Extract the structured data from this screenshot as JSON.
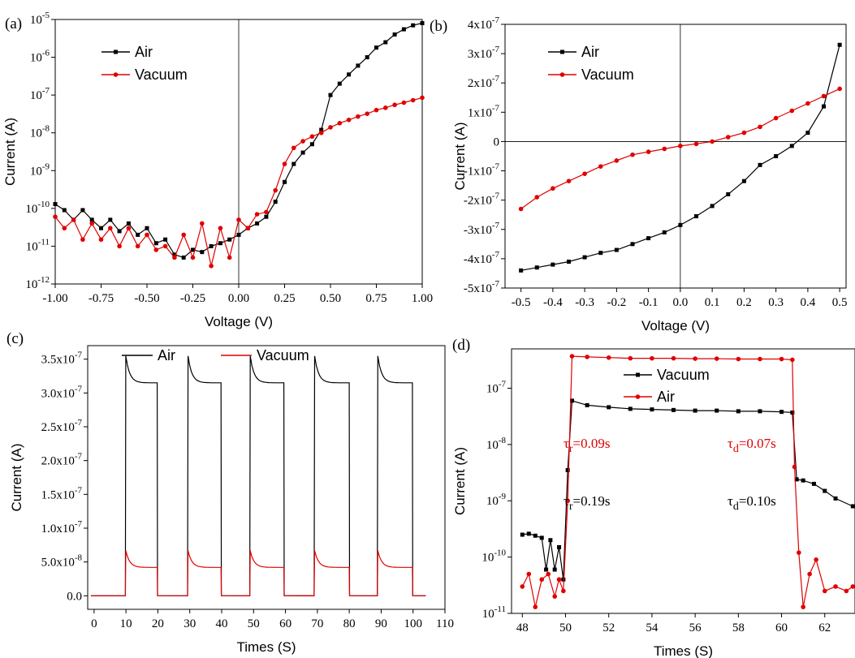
{
  "colors": {
    "air": "#000000",
    "vacuum": "#e00000"
  },
  "chart_data": [
    {
      "panel": "(a)",
      "type": "line",
      "xlabel": "Voltage (V)",
      "ylabel": "Current (A)",
      "xlim": [
        -1.0,
        1.0
      ],
      "ylim": [
        1e-12,
        1e-05
      ],
      "yscale": "log",
      "xticks": [
        "-1.00",
        "-0.75",
        "-0.50",
        "-0.25",
        "0.00",
        "0.25",
        "0.50",
        "0.75",
        "1.00"
      ],
      "yticks": [
        {
          "base": "10",
          "exp": "-12"
        },
        {
          "base": "10",
          "exp": "-11"
        },
        {
          "base": "10",
          "exp": "-10"
        },
        {
          "base": "10",
          "exp": "-9"
        },
        {
          "base": "10",
          "exp": "-8"
        },
        {
          "base": "10",
          "exp": "-7"
        },
        {
          "base": "10",
          "exp": "-6"
        },
        {
          "base": "10",
          "exp": "-5"
        }
      ],
      "legend_position": "top-left",
      "series": [
        {
          "name": "Air",
          "color": "#000000",
          "marker": "square",
          "x": [
            -1.0,
            -0.95,
            -0.9,
            -0.85,
            -0.8,
            -0.75,
            -0.7,
            -0.65,
            -0.6,
            -0.55,
            -0.5,
            -0.45,
            -0.4,
            -0.35,
            -0.3,
            -0.25,
            -0.2,
            -0.15,
            -0.1,
            -0.05,
            0.0,
            0.05,
            0.1,
            0.15,
            0.2,
            0.25,
            0.3,
            0.35,
            0.4,
            0.45,
            0.5,
            0.55,
            0.6,
            0.65,
            0.7,
            0.75,
            0.8,
            0.85,
            0.9,
            0.95,
            1.0
          ],
          "y": [
            1.3e-10,
            9e-11,
            5e-11,
            9e-11,
            5e-11,
            3e-11,
            5e-11,
            2.5e-11,
            4e-11,
            2e-11,
            3e-11,
            1.2e-11,
            1.5e-11,
            6e-12,
            5e-12,
            8e-12,
            7e-12,
            1e-11,
            1.2e-11,
            1.5e-11,
            2e-11,
            3e-11,
            4e-11,
            6e-11,
            1.5e-10,
            5e-10,
            1.5e-09,
            3e-09,
            5e-09,
            1.2e-08,
            1e-07,
            2e-07,
            3.5e-07,
            6e-07,
            1e-06,
            1.8e-06,
            2.5e-06,
            4e-06,
            5.5e-06,
            7e-06,
            8e-06
          ]
        },
        {
          "name": "Vacuum",
          "color": "#e00000",
          "marker": "circle",
          "x": [
            -1.0,
            -0.95,
            -0.9,
            -0.85,
            -0.8,
            -0.75,
            -0.7,
            -0.65,
            -0.6,
            -0.55,
            -0.5,
            -0.45,
            -0.4,
            -0.35,
            -0.3,
            -0.25,
            -0.2,
            -0.15,
            -0.1,
            -0.05,
            0.0,
            0.05,
            0.1,
            0.15,
            0.2,
            0.25,
            0.3,
            0.35,
            0.4,
            0.45,
            0.5,
            0.55,
            0.6,
            0.65,
            0.7,
            0.75,
            0.8,
            0.85,
            0.9,
            0.95,
            1.0
          ],
          "y": [
            6e-11,
            3e-11,
            5e-11,
            1.5e-11,
            4e-11,
            1.5e-11,
            3e-11,
            1e-11,
            3e-11,
            1e-11,
            2e-11,
            8e-12,
            1e-11,
            5e-12,
            2e-11,
            5e-12,
            4e-11,
            3e-12,
            3e-11,
            5e-12,
            5e-11,
            3e-11,
            7e-11,
            8e-11,
            3e-10,
            1.5e-09,
            4e-09,
            6e-09,
            8e-09,
            1e-08,
            1.4e-08,
            1.8e-08,
            2.2e-08,
            2.7e-08,
            3.2e-08,
            4e-08,
            4.6e-08,
            5.5e-08,
            6.3e-08,
            7.3e-08,
            8.5e-08
          ]
        }
      ]
    },
    {
      "panel": "(b)",
      "type": "line",
      "xlabel": "Voltage (V)",
      "ylabel": "Current (A)",
      "xlim": [
        -0.55,
        0.52
      ],
      "ylim": [
        -5e-07,
        4e-07
      ],
      "xticks": [
        "-0.5",
        "-0.4",
        "-0.3",
        "-0.2",
        "-0.1",
        "0.0",
        "0.1",
        "0.2",
        "0.3",
        "0.4",
        "0.5"
      ],
      "yticks": [
        {
          "base": "-5x10",
          "exp": "-7"
        },
        {
          "base": "-4x10",
          "exp": "-7"
        },
        {
          "base": "-3x10",
          "exp": "-7"
        },
        {
          "base": "-2x10",
          "exp": "-7"
        },
        {
          "base": "-1x10",
          "exp": "-7"
        },
        {
          "base": "0",
          "exp": ""
        },
        {
          "base": "1x10",
          "exp": "-7"
        },
        {
          "base": "2x10",
          "exp": "-7"
        },
        {
          "base": "3x10",
          "exp": "-7"
        },
        {
          "base": "4x10",
          "exp": "-7"
        }
      ],
      "legend_position": "top-left",
      "series": [
        {
          "name": "Air",
          "color": "#000000",
          "marker": "square",
          "x": [
            -0.5,
            -0.45,
            -0.4,
            -0.35,
            -0.3,
            -0.25,
            -0.2,
            -0.15,
            -0.1,
            -0.05,
            0.0,
            0.05,
            0.1,
            0.15,
            0.2,
            0.25,
            0.3,
            0.35,
            0.4,
            0.45,
            0.5
          ],
          "y": [
            -4.4e-07,
            -4.3e-07,
            -4.2e-07,
            -4.1e-07,
            -3.95e-07,
            -3.8e-07,
            -3.7e-07,
            -3.5e-07,
            -3.3e-07,
            -3.1e-07,
            -2.85e-07,
            -2.55e-07,
            -2.2e-07,
            -1.8e-07,
            -1.35e-07,
            -8e-08,
            -5e-08,
            -1.5e-08,
            3e-08,
            1.2e-07,
            3.3e-07
          ]
        },
        {
          "name": "Vacuum",
          "color": "#e00000",
          "marker": "circle",
          "x": [
            -0.5,
            -0.45,
            -0.4,
            -0.35,
            -0.3,
            -0.25,
            -0.2,
            -0.15,
            -0.1,
            -0.05,
            0.0,
            0.05,
            0.1,
            0.15,
            0.2,
            0.25,
            0.3,
            0.35,
            0.4,
            0.45,
            0.5
          ],
          "y": [
            -2.3e-07,
            -1.9e-07,
            -1.6e-07,
            -1.35e-07,
            -1.1e-07,
            -8.5e-08,
            -6.5e-08,
            -4.5e-08,
            -3.5e-08,
            -2.5e-08,
            -1.5e-08,
            -8e-09,
            0,
            1.5e-08,
            3e-08,
            5e-08,
            8e-08,
            1.05e-07,
            1.3e-07,
            1.55e-07,
            1.8e-07
          ]
        }
      ]
    },
    {
      "panel": "(c)",
      "type": "line",
      "xlabel": "Times (S)",
      "ylabel": "Current (A)",
      "xlim": [
        -2,
        110
      ],
      "ylim": [
        -2e-08,
        3.7e-07
      ],
      "xticks": [
        "0",
        "10",
        "20",
        "30",
        "40",
        "50",
        "60",
        "70",
        "80",
        "90",
        "100",
        "110"
      ],
      "yticks": [
        {
          "base": "0.0",
          "exp": ""
        },
        {
          "base": "5.0x10",
          "exp": "-8"
        },
        {
          "base": "1.0x10",
          "exp": "-7"
        },
        {
          "base": "1.5x10",
          "exp": "-7"
        },
        {
          "base": "2.0x10",
          "exp": "-7"
        },
        {
          "base": "2.5x10",
          "exp": "-7"
        },
        {
          "base": "3.0x10",
          "exp": "-7"
        },
        {
          "base": "3.5x10",
          "exp": "-7"
        }
      ],
      "legend_position": "top",
      "periods": [
        [
          9.8,
          19.8
        ],
        [
          29.3,
          39.8
        ],
        [
          48.8,
          59.5
        ],
        [
          69.0,
          80.0
        ],
        [
          88.8,
          99.8
        ]
      ],
      "series": [
        {
          "name": "Air",
          "color": "#000000",
          "peak": 3.6e-07,
          "plateau": 3.15e-07
        },
        {
          "name": "Vacuum",
          "color": "#e00000",
          "peak": 7e-08,
          "plateau": 4.2e-08
        }
      ]
    },
    {
      "panel": "(d)",
      "type": "scatter",
      "xlabel": "Times (S)",
      "ylabel": "Current (A)",
      "xlim": [
        47.5,
        63.4
      ],
      "ylim": [
        1e-11,
        5e-07
      ],
      "yscale": "log",
      "xticks": [
        "48",
        "50",
        "52",
        "54",
        "56",
        "58",
        "60",
        "62"
      ],
      "yticks": [
        {
          "base": "10",
          "exp": "-11"
        },
        {
          "base": "10",
          "exp": "-10"
        },
        {
          "base": "10",
          "exp": "-9"
        },
        {
          "base": "10",
          "exp": "-8"
        },
        {
          "base": "10",
          "exp": "-7"
        }
      ],
      "legend_position": "top-center",
      "series": [
        {
          "name": "Vacuum",
          "color": "#000000",
          "marker": "square",
          "x": [
            48.0,
            48.3,
            48.6,
            48.9,
            49.1,
            49.3,
            49.5,
            49.7,
            49.9,
            50.1,
            50.3,
            51,
            52,
            53,
            54,
            55,
            56,
            57,
            58,
            59,
            60,
            60.5,
            60.7,
            61.0,
            61.5,
            62.0,
            62.5,
            63.3
          ],
          "y": [
            2.5e-10,
            2.6e-10,
            2.4e-10,
            2.2e-10,
            6e-11,
            2e-10,
            6e-11,
            1.5e-10,
            4e-11,
            3.5e-09,
            6e-08,
            5e-08,
            4.6e-08,
            4.3e-08,
            4.2e-08,
            4.1e-08,
            4e-08,
            4e-08,
            3.9e-08,
            3.9e-08,
            3.8e-08,
            3.7e-08,
            2.4e-09,
            2.3e-09,
            2e-09,
            1.5e-09,
            1.1e-09,
            8e-10
          ]
        },
        {
          "name": "Air",
          "color": "#e00000",
          "marker": "circle",
          "x": [
            48.0,
            48.3,
            48.6,
            48.9,
            49.2,
            49.5,
            49.7,
            49.9,
            50.1,
            50.3,
            51,
            52,
            53,
            54,
            55,
            56,
            57,
            58,
            59,
            60,
            60.5,
            60.6,
            60.8,
            61.0,
            61.3,
            61.6,
            62.0,
            62.5,
            63.0,
            63.3
          ],
          "y": [
            3e-11,
            5e-11,
            1.3e-11,
            4e-11,
            5e-11,
            2e-11,
            4e-11,
            2.5e-11,
            1e-09,
            3.7e-07,
            3.6e-07,
            3.5e-07,
            3.4e-07,
            3.4e-07,
            3.4e-07,
            3.35e-07,
            3.35e-07,
            3.3e-07,
            3.3e-07,
            3.3e-07,
            3.2e-07,
            4e-09,
            1.2e-10,
            1.3e-11,
            5e-11,
            9e-11,
            2.5e-11,
            3e-11,
            2.5e-11,
            3e-11
          ]
        }
      ],
      "annotations": [
        {
          "sym": "τ",
          "sub": "r",
          "text": "=0.09s",
          "color": "#e00000"
        },
        {
          "sym": "τ",
          "sub": "d",
          "text": "=0.07s",
          "color": "#e00000"
        },
        {
          "sym": "τ",
          "sub": "r",
          "text": "=0.19s",
          "color": "#000000"
        },
        {
          "sym": "τ",
          "sub": "d",
          "text": "=0.10s",
          "color": "#000000"
        }
      ]
    }
  ]
}
